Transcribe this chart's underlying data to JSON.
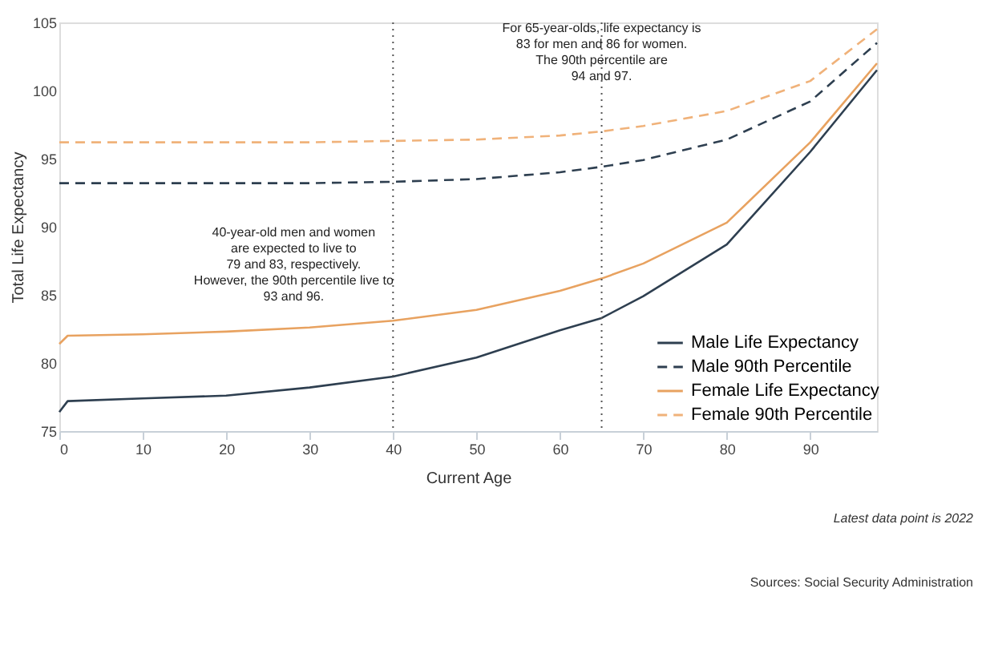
{
  "chart_data": {
    "type": "line",
    "xlabel": "Current Age",
    "ylabel": "Total Life Expectancy",
    "xlim": [
      0,
      98
    ],
    "xticks": [
      0,
      10,
      20,
      30,
      40,
      50,
      60,
      70,
      80,
      90
    ],
    "ylim": [
      75,
      105
    ],
    "yticks": [
      75,
      80,
      85,
      90,
      95,
      100,
      105
    ],
    "grid": false,
    "legend": "bottom right",
    "marker": "none",
    "series": [
      {
        "name": "Male Life Expectancy",
        "color": "#2e3f50",
        "line_style": "solid",
        "x": [
          0,
          1,
          10,
          20,
          30,
          40,
          50,
          60,
          65,
          70,
          80,
          90,
          98
        ],
        "values": [
          76.4,
          77.2,
          77.4,
          77.6,
          78.2,
          79.0,
          80.4,
          82.4,
          83.3,
          84.9,
          88.7,
          95.5,
          101.5
        ]
      },
      {
        "name": "Male 90th Percentile",
        "color": "#2e3f50",
        "line_style": "dashed",
        "x": [
          0,
          10,
          20,
          30,
          40,
          50,
          60,
          65,
          70,
          80,
          90,
          98
        ],
        "values": [
          93.2,
          93.2,
          93.2,
          93.2,
          93.3,
          93.5,
          94.0,
          94.4,
          94.9,
          96.4,
          99.2,
          103.5
        ]
      },
      {
        "name": "Female Life Expectancy",
        "color": "#e8a260",
        "line_style": "solid",
        "x": [
          0,
          1,
          10,
          20,
          30,
          40,
          50,
          60,
          65,
          70,
          80,
          90,
          98
        ],
        "values": [
          81.4,
          82.0,
          82.1,
          82.3,
          82.6,
          83.1,
          83.9,
          85.3,
          86.2,
          87.3,
          90.3,
          96.2,
          102.0
        ]
      },
      {
        "name": "Female 90th Percentile",
        "color": "#f0b27a",
        "line_style": "dashed",
        "x": [
          0,
          10,
          20,
          30,
          40,
          50,
          60,
          65,
          70,
          80,
          90,
          98
        ],
        "values": [
          96.2,
          96.2,
          96.2,
          96.2,
          96.3,
          96.4,
          96.7,
          97.0,
          97.4,
          98.5,
          100.7,
          104.5
        ]
      }
    ],
    "ref_lines": [
      {
        "axis": "x",
        "value": 40,
        "color": "#555555",
        "line_style": "dotted"
      },
      {
        "axis": "x",
        "value": 65,
        "color": "#555555",
        "line_style": "dotted"
      }
    ],
    "annotations": [
      {
        "text": "40-year-old men and women\nare expected to live to\n79 and 83, respectively.\nHowever, the 90th percentile live to\n93 and 96.",
        "x": 40,
        "y": 90
      },
      {
        "text": "For 65-year-olds, life expectancy is\n83 for men and 86 for women.\nThe 90th percentile are\n94 and 97.",
        "x": 65,
        "y": 105
      },
      "Latest data point is 2022",
      "Sources: Social Security Administration"
    ]
  }
}
